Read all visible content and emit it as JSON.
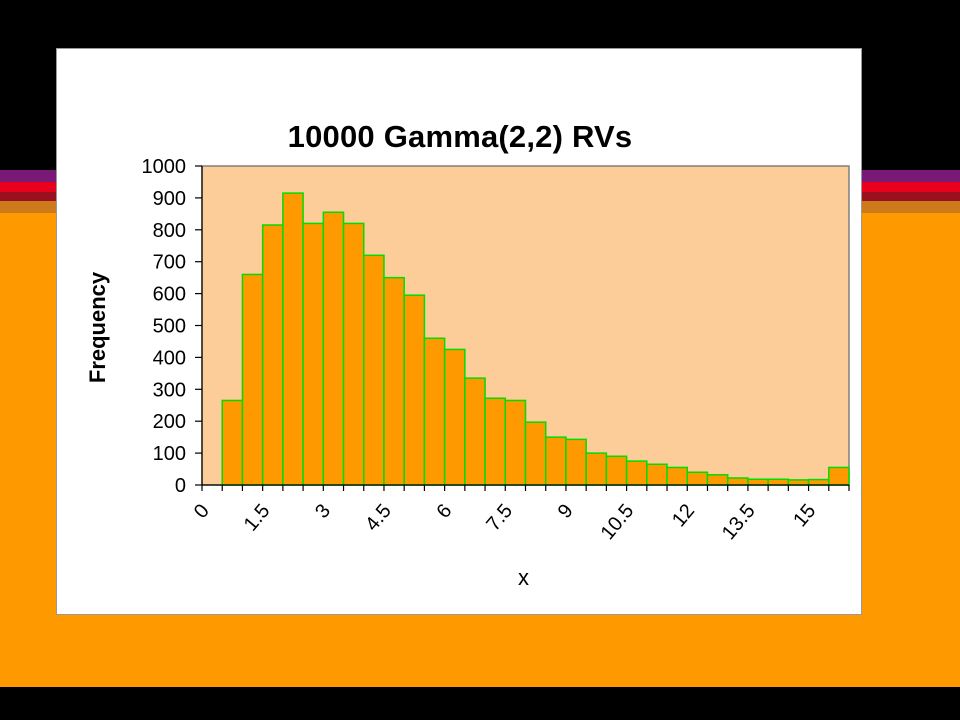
{
  "chart_data": {
    "type": "bar",
    "title": "10000 Gamma(2,2) RVs",
    "xlabel": "x",
    "ylabel": "Frequency",
    "ylim": [
      0,
      1000
    ],
    "yticks": [
      "0",
      "100",
      "200",
      "300",
      "400",
      "500",
      "600",
      "700",
      "800",
      "900",
      "1000"
    ],
    "xtick_labels": [
      "0",
      "1.5",
      "3",
      "4.5",
      "6",
      "7.5",
      "9",
      "10.5",
      "12",
      "13.5",
      "15"
    ],
    "bin_width": 0.5,
    "values": [
      0,
      265,
      660,
      815,
      915,
      820,
      855,
      820,
      720,
      650,
      595,
      460,
      425,
      335,
      272,
      265,
      197,
      150,
      143,
      100,
      90,
      75,
      65,
      55,
      40,
      32,
      22,
      18,
      18,
      16,
      17,
      55
    ],
    "grid": false,
    "legend": "none",
    "colors": {
      "plot_background": "#fccc99",
      "bar_fill": "#ff9900",
      "bar_edge": "#00dd00",
      "axis": "#000000",
      "frame_border": "#808080"
    }
  }
}
